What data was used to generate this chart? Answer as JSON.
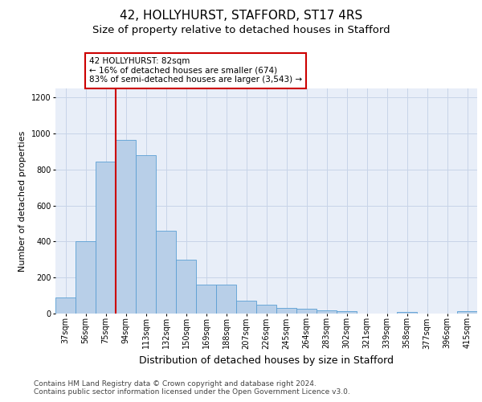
{
  "title": "42, HOLLYHURST, STAFFORD, ST17 4RS",
  "subtitle": "Size of property relative to detached houses in Stafford",
  "xlabel": "Distribution of detached houses by size in Stafford",
  "ylabel": "Number of detached properties",
  "categories": [
    "37sqm",
    "56sqm",
    "75sqm",
    "94sqm",
    "113sqm",
    "132sqm",
    "150sqm",
    "169sqm",
    "188sqm",
    "207sqm",
    "226sqm",
    "245sqm",
    "264sqm",
    "283sqm",
    "302sqm",
    "321sqm",
    "339sqm",
    "358sqm",
    "377sqm",
    "396sqm",
    "415sqm"
  ],
  "values": [
    90,
    400,
    845,
    965,
    880,
    460,
    300,
    160,
    160,
    70,
    50,
    30,
    25,
    20,
    15,
    0,
    0,
    10,
    0,
    0,
    15
  ],
  "bar_color": "#b8cfe8",
  "bar_edge_color": "#5a9fd4",
  "red_line_x": 2.5,
  "annotation_line_color": "#cc0000",
  "annotation_text": "42 HOLLYHURST: 82sqm\n← 16% of detached houses are smaller (674)\n83% of semi-detached houses are larger (3,543) →",
  "annotation_box_facecolor": "white",
  "annotation_box_edgecolor": "#cc0000",
  "ylim": [
    0,
    1250
  ],
  "yticks": [
    0,
    200,
    400,
    600,
    800,
    1000,
    1200
  ],
  "grid_color": "#c8d4e8",
  "background_color": "#e8eef8",
  "footer_text": "Contains HM Land Registry data © Crown copyright and database right 2024.\nContains public sector information licensed under the Open Government Licence v3.0.",
  "title_fontsize": 11,
  "subtitle_fontsize": 9.5,
  "xlabel_fontsize": 9,
  "ylabel_fontsize": 8,
  "tick_fontsize": 7,
  "annotation_fontsize": 7.5,
  "footer_fontsize": 6.5
}
